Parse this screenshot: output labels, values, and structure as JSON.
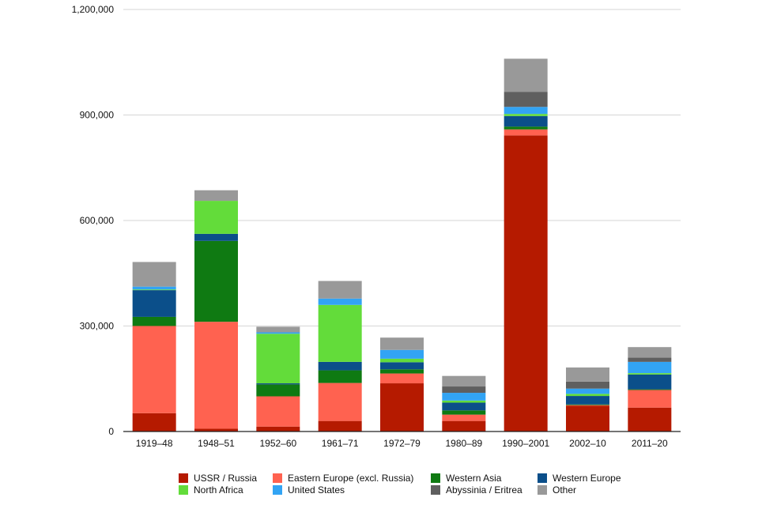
{
  "chart_data": {
    "type": "bar",
    "stacked": true,
    "title": "",
    "xlabel": "",
    "ylabel": "",
    "ylim": [
      0,
      1200000
    ],
    "y_ticks": [
      0,
      300000,
      600000,
      900000,
      1200000
    ],
    "y_tick_labels": [
      "0",
      "300,000",
      "600,000",
      "900,000",
      "1,200,000"
    ],
    "grid": true,
    "legend_position": "bottom",
    "categories": [
      "1919–48",
      "1948–51",
      "1952–60",
      "1961–71",
      "1972–79",
      "1980–89",
      "1990–2001",
      "2002–10",
      "2011–20"
    ],
    "series": [
      {
        "name": "USSR / Russia",
        "color": "#b51a00",
        "values": [
          52000,
          8000,
          14000,
          30000,
          137000,
          30000,
          842000,
          73000,
          68000
        ]
      },
      {
        "name": "Eastern Europe (excl. Russia)",
        "color": "#ff6250",
        "values": [
          248000,
          304000,
          86000,
          108000,
          28000,
          18000,
          17000,
          2000,
          50000
        ]
      },
      {
        "name": "Western Asia",
        "color": "#0f7a12",
        "values": [
          26000,
          230000,
          34000,
          36000,
          12000,
          12000,
          8000,
          2000,
          2000
        ]
      },
      {
        "name": "Western Europe",
        "color": "#0b4f8a",
        "values": [
          76000,
          20000,
          3000,
          24000,
          20000,
          22000,
          30000,
          24000,
          42000
        ]
      },
      {
        "name": "North Africa",
        "color": "#63dc3a",
        "values": [
          2000,
          94000,
          141000,
          162000,
          10000,
          6000,
          6000,
          6000,
          4000
        ]
      },
      {
        "name": "United States",
        "color": "#32a4f4",
        "values": [
          8000,
          0,
          4000,
          18000,
          25000,
          22000,
          20000,
          15000,
          32000
        ]
      },
      {
        "name": "Abyssinia / Eritrea",
        "color": "#5f5f5f",
        "values": [
          0,
          0,
          0,
          0,
          0,
          18000,
          43000,
          20000,
          12000
        ]
      },
      {
        "name": "Other",
        "color": "#999999",
        "values": [
          70000,
          30000,
          16000,
          50000,
          35000,
          30000,
          94000,
          40000,
          30000
        ]
      }
    ]
  }
}
